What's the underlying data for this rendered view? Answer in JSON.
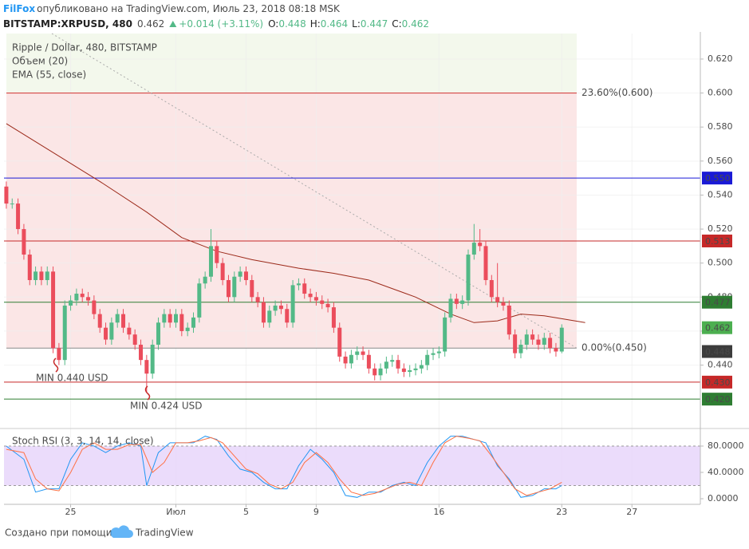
{
  "header": {
    "author": "FilFox",
    "published": "опубликовано на TradingView.com, Июль 23, 2018 08:18 MSK",
    "symbol": "BITSTAMP:XRPUSD, 480",
    "price": "0.462",
    "change": "+0.014 (+3.11%)",
    "ohlc": [
      {
        "label": "O:",
        "value": "0.448"
      },
      {
        "label": "H:",
        "value": "0.464"
      },
      {
        "label": "L:",
        "value": "0.447"
      },
      {
        "label": "C:",
        "value": "0.462"
      }
    ]
  },
  "chart_data": [
    {
      "type": "candlestick",
      "title": "Ripple / Dollar, 480, BITSTAMP",
      "indicators": [
        "Объем (20)",
        "EMA (55, close)"
      ],
      "up_color": "#53b987",
      "down_color": "#eb4d5c",
      "xlim": [
        -0.4,
        118.7
      ],
      "xticks": [
        {
          "value": 11,
          "label": "25"
        },
        {
          "value": 29,
          "label": "Июл"
        },
        {
          "value": 41,
          "label": "5"
        },
        {
          "value": 53,
          "label": "9"
        },
        {
          "value": 74,
          "label": "16"
        },
        {
          "value": 95,
          "label": "23"
        },
        {
          "value": 107,
          "label": "27"
        }
      ],
      "ylim": [
        0.406,
        0.635
      ],
      "yticks": [
        {
          "value": 0.44,
          "label": "0.440"
        },
        {
          "value": 0.46,
          "label": "0.460"
        },
        {
          "value": 0.48,
          "label": "0.480"
        },
        {
          "value": 0.5,
          "label": "0.500"
        },
        {
          "value": 0.52,
          "label": "0.520"
        },
        {
          "value": 0.54,
          "label": "0.540"
        },
        {
          "value": 0.56,
          "label": "0.560"
        },
        {
          "value": 0.58,
          "label": "0.580"
        },
        {
          "value": 0.6,
          "label": "0.600"
        },
        {
          "value": 0.62,
          "label": "0.620"
        }
      ],
      "grid": true,
      "open": [
        0.545,
        0.535,
        0.535,
        0.52,
        0.505,
        0.49,
        0.495,
        0.49,
        0.495,
        0.45,
        0.443,
        0.475,
        0.478,
        0.482,
        0.48,
        0.478,
        0.47,
        0.462,
        0.455,
        0.465,
        0.47,
        0.462,
        0.458,
        0.452,
        0.443,
        0.435,
        0.452,
        0.465,
        0.47,
        0.465,
        0.47,
        0.46,
        0.462,
        0.468,
        0.488,
        0.492,
        0.51,
        0.5,
        0.49,
        0.48,
        0.492,
        0.495,
        0.49,
        0.48,
        0.477,
        0.465,
        0.472,
        0.475,
        0.473,
        0.465,
        0.487,
        0.488,
        0.482,
        0.48,
        0.478,
        0.476,
        0.474,
        0.462,
        0.445,
        0.441,
        0.446,
        0.448,
        0.446,
        0.438,
        0.434,
        0.438,
        0.442,
        0.443,
        0.438,
        0.436,
        0.437,
        0.438,
        0.44,
        0.446,
        0.447,
        0.448,
        0.468,
        0.479,
        0.476,
        0.478,
        0.505,
        0.512,
        0.51,
        0.49,
        0.48,
        0.477,
        0.475,
        0.458,
        0.447,
        0.452,
        0.458,
        0.455,
        0.452,
        0.456,
        0.45,
        0.448
      ],
      "high": [
        0.548,
        0.538,
        0.538,
        0.523,
        0.508,
        0.498,
        0.498,
        0.498,
        0.498,
        0.453,
        0.478,
        0.481,
        0.485,
        0.485,
        0.483,
        0.481,
        0.473,
        0.465,
        0.468,
        0.473,
        0.473,
        0.465,
        0.461,
        0.455,
        0.446,
        0.455,
        0.468,
        0.473,
        0.473,
        0.473,
        0.473,
        0.465,
        0.471,
        0.491,
        0.495,
        0.52,
        0.513,
        0.503,
        0.493,
        0.495,
        0.498,
        0.498,
        0.493,
        0.483,
        0.48,
        0.475,
        0.478,
        0.478,
        0.476,
        0.49,
        0.491,
        0.491,
        0.485,
        0.483,
        0.481,
        0.479,
        0.477,
        0.465,
        0.448,
        0.449,
        0.451,
        0.451,
        0.449,
        0.441,
        0.441,
        0.445,
        0.446,
        0.446,
        0.441,
        0.44,
        0.441,
        0.443,
        0.449,
        0.45,
        0.451,
        0.471,
        0.482,
        0.482,
        0.481,
        0.508,
        0.523,
        0.52,
        0.513,
        0.493,
        0.5,
        0.48,
        0.478,
        0.461,
        0.455,
        0.461,
        0.461,
        0.458,
        0.459,
        0.459,
        0.453,
        0.464
      ],
      "low": [
        0.532,
        0.532,
        0.517,
        0.502,
        0.487,
        0.487,
        0.487,
        0.487,
        0.447,
        0.44,
        0.44,
        0.472,
        0.475,
        0.477,
        0.475,
        0.467,
        0.459,
        0.452,
        0.452,
        0.462,
        0.459,
        0.455,
        0.449,
        0.44,
        0.424,
        0.432,
        0.449,
        0.462,
        0.462,
        0.462,
        0.457,
        0.457,
        0.459,
        0.465,
        0.485,
        0.489,
        0.497,
        0.487,
        0.477,
        0.477,
        0.489,
        0.487,
        0.477,
        0.474,
        0.462,
        0.462,
        0.469,
        0.47,
        0.462,
        0.462,
        0.484,
        0.479,
        0.477,
        0.475,
        0.473,
        0.471,
        0.459,
        0.442,
        0.438,
        0.438,
        0.443,
        0.443,
        0.435,
        0.431,
        0.431,
        0.435,
        0.439,
        0.435,
        0.433,
        0.433,
        0.434,
        0.435,
        0.437,
        0.443,
        0.444,
        0.445,
        0.465,
        0.473,
        0.473,
        0.475,
        0.502,
        0.507,
        0.487,
        0.477,
        0.474,
        0.472,
        0.455,
        0.444,
        0.444,
        0.449,
        0.452,
        0.449,
        0.449,
        0.447,
        0.445,
        0.447
      ],
      "close": [
        0.535,
        0.535,
        0.52,
        0.505,
        0.49,
        0.495,
        0.49,
        0.495,
        0.45,
        0.443,
        0.475,
        0.478,
        0.482,
        0.48,
        0.478,
        0.47,
        0.462,
        0.455,
        0.465,
        0.47,
        0.462,
        0.458,
        0.452,
        0.443,
        0.435,
        0.452,
        0.465,
        0.47,
        0.465,
        0.47,
        0.46,
        0.462,
        0.468,
        0.488,
        0.492,
        0.51,
        0.5,
        0.49,
        0.48,
        0.492,
        0.495,
        0.49,
        0.48,
        0.477,
        0.465,
        0.472,
        0.475,
        0.473,
        0.465,
        0.487,
        0.488,
        0.482,
        0.48,
        0.478,
        0.476,
        0.474,
        0.462,
        0.445,
        0.441,
        0.446,
        0.448,
        0.446,
        0.438,
        0.434,
        0.438,
        0.442,
        0.443,
        0.438,
        0.436,
        0.437,
        0.438,
        0.44,
        0.446,
        0.447,
        0.448,
        0.468,
        0.479,
        0.476,
        0.478,
        0.505,
        0.512,
        0.51,
        0.49,
        0.48,
        0.477,
        0.475,
        0.458,
        0.447,
        0.452,
        0.458,
        0.455,
        0.452,
        0.456,
        0.45,
        0.448,
        0.462
      ],
      "ema": {
        "color": "#9c2a1a",
        "x": [
          0,
          8,
          16,
          24,
          30,
          36,
          42,
          50,
          56,
          62,
          70,
          76,
          80,
          84,
          88,
          92,
          99
        ],
        "values": [
          0.582,
          0.565,
          0.548,
          0.53,
          0.515,
          0.507,
          0.502,
          0.497,
          0.494,
          0.49,
          0.48,
          0.47,
          0.465,
          0.466,
          0.47,
          0.469,
          0.465
        ]
      },
      "fib": [
        {
          "value": 0.6,
          "label": "23.60%(0.600)",
          "color": "#d32f2f",
          "fill": "#f3f8ec"
        },
        {
          "value": 0.45,
          "label": "0.00%(0.450)",
          "color": "#8a8a8a",
          "fill": "#fbe6e6"
        }
      ],
      "levels": [
        {
          "value": 0.55,
          "label": "0.550",
          "color": "#1a1ad6"
        },
        {
          "value": 0.513,
          "label": "0.513",
          "color": "#c62828"
        },
        {
          "value": 0.477,
          "label": "0.477",
          "color": "#2e7d32"
        },
        {
          "value": 0.43,
          "label": "0.430",
          "color": "#c62828"
        },
        {
          "value": 0.42,
          "label": "0.420",
          "color": "#2e7d32"
        }
      ],
      "tags": [
        {
          "value": 0.462,
          "label": "0.462",
          "color": "#4caf50"
        },
        {
          "value": 0.448,
          "label": "0.448",
          "color": "#3c3c3c"
        }
      ],
      "annotations": [
        "MIN 0.440 USD",
        "MIN 0.424 USD"
      ]
    },
    {
      "type": "line",
      "title": "Stoch RSI (3, 3, 14, 14, close)",
      "ylim": [
        -8.5,
        100.6
      ],
      "yticks": [
        {
          "value": 0,
          "label": "0.0000"
        },
        {
          "value": 40,
          "label": "40.0000"
        },
        {
          "value": 80,
          "label": "80.0000"
        }
      ],
      "band": [
        20,
        80
      ],
      "band_color": "#e6d3fa",
      "series": [
        {
          "color": "#2196f3",
          "x": [
            0,
            3,
            5,
            7,
            9,
            11,
            13,
            15,
            17,
            19,
            21,
            23,
            24,
            26,
            28,
            30,
            32,
            34,
            36,
            38,
            40,
            42,
            44,
            46,
            48,
            50,
            52,
            54,
            56,
            58,
            60,
            62,
            64,
            66,
            68,
            70,
            72,
            74,
            76,
            78,
            80,
            82,
            84,
            86,
            88,
            90,
            92,
            94,
            95
          ],
          "values": [
            80,
            60,
            10,
            15,
            15,
            60,
            85,
            80,
            70,
            80,
            85,
            80,
            20,
            70,
            85,
            85,
            85,
            95,
            90,
            65,
            45,
            40,
            25,
            15,
            15,
            50,
            75,
            60,
            40,
            5,
            2,
            10,
            10,
            20,
            25,
            20,
            55,
            80,
            95,
            95,
            90,
            85,
            50,
            30,
            2,
            5,
            15,
            15,
            20
          ]
        },
        {
          "color": "#ff7043",
          "x": [
            0,
            3,
            5,
            7,
            9,
            11,
            13,
            15,
            17,
            19,
            21,
            23,
            25,
            27,
            29,
            31,
            33,
            35,
            37,
            39,
            41,
            43,
            45,
            47,
            49,
            51,
            53,
            55,
            57,
            59,
            61,
            63,
            65,
            67,
            69,
            71,
            73,
            75,
            77,
            79,
            81,
            83,
            85,
            87,
            89,
            91,
            93,
            95
          ],
          "values": [
            75,
            70,
            30,
            15,
            12,
            40,
            75,
            85,
            75,
            75,
            82,
            82,
            40,
            55,
            85,
            85,
            88,
            93,
            85,
            65,
            45,
            38,
            22,
            15,
            25,
            55,
            70,
            55,
            30,
            10,
            5,
            8,
            15,
            22,
            25,
            20,
            55,
            85,
            95,
            92,
            88,
            65,
            40,
            15,
            5,
            10,
            15,
            25
          ]
        }
      ]
    }
  ],
  "footer": {
    "text": "Создано при помощи",
    "brand": "TradingView"
  }
}
